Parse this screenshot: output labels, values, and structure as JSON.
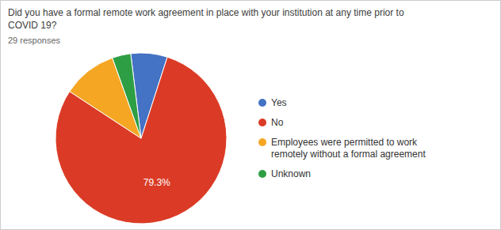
{
  "chart_data": {
    "type": "pie",
    "title": "Did you have a formal remote work agreement in place with your institution at any time prior to\nCOVID 19?",
    "subtitle": "29 responses",
    "categories": [
      "Yes",
      "No",
      "Employees were permitted to work\nremotely without a formal agreement",
      "Unknown"
    ],
    "values": [
      6.9,
      79.3,
      10.3,
      3.5
    ],
    "colors": [
      "#4472c4",
      "#db3b26",
      "#f5a623",
      "#2e9e44"
    ],
    "data_labels": true,
    "value_labels": [
      null,
      "79.3%",
      null,
      null
    ],
    "legend": "right"
  }
}
